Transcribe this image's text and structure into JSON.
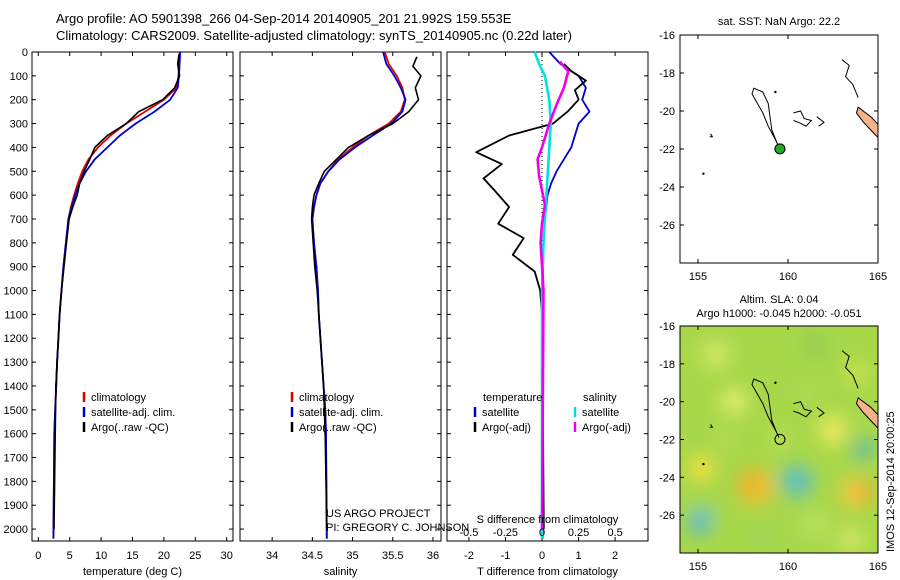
{
  "header": {
    "line1": "Argo profile: AO 5901398_266 04-Sep-2014 20140905_201 21.992S 159.553E",
    "line2": "Climatology: CARS2009. Satellite-adjusted climatology: synTS_20140905.nc (0.22d later)"
  },
  "side_stamp": "IMOS 12-Sep-2014 20:00:25",
  "credit": {
    "line1": "US ARGO PROJECT",
    "line2": "PI: GREGORY C. JOHNSON"
  },
  "colors": {
    "climatology": "#dd0000",
    "satellite": "#0000cc",
    "argo": "#000000",
    "sal_satellite": "#00e0e0",
    "sal_argo": "#ee00ee",
    "land": "#f4b488"
  },
  "chart_data": [
    {
      "type": "line",
      "id": "temperature",
      "xlabel": "temperature (deg C)",
      "ylabel": "",
      "xlim": [
        -1,
        31
      ],
      "ylim": [
        2050,
        0
      ],
      "xticks": [
        0,
        5,
        10,
        15,
        20,
        25,
        30
      ],
      "yticks": [
        0,
        100,
        200,
        300,
        400,
        500,
        600,
        700,
        800,
        900,
        1000,
        1100,
        1200,
        1300,
        1400,
        1500,
        1600,
        1700,
        1800,
        1900,
        2000
      ],
      "legend": [
        "climatology",
        "satellite-adj. clim.",
        "Argo(..raw -QC)"
      ],
      "series": [
        {
          "name": "climatology",
          "color": "#dd0000",
          "x": [
            22.5,
            22.4,
            22.3,
            22.0,
            20.0,
            17.0,
            14.0,
            11.5,
            9.5,
            8.0,
            7.0,
            6.3,
            5.7,
            5.2,
            4.8,
            4.4,
            4.0,
            3.7,
            3.4,
            3.2,
            3.0,
            2.85,
            2.7,
            2.55,
            2.4
          ],
          "y": [
            0,
            50,
            100,
            150,
            200,
            250,
            300,
            350,
            400,
            450,
            500,
            550,
            600,
            650,
            700,
            800,
            900,
            1000,
            1100,
            1200,
            1300,
            1400,
            1500,
            1600,
            2040
          ]
        },
        {
          "name": "satellite-adj. clim.",
          "color": "#0000cc",
          "x": [
            22.6,
            22.5,
            22.4,
            22.2,
            21.0,
            18.5,
            15.5,
            13.0,
            11.0,
            9.0,
            7.6,
            6.6,
            5.9,
            5.3,
            4.8,
            4.4,
            4.0,
            3.7,
            3.4,
            3.2,
            3.0,
            2.85,
            2.7,
            2.55,
            2.4
          ],
          "y": [
            0,
            50,
            100,
            150,
            200,
            250,
            300,
            350,
            400,
            450,
            500,
            550,
            600,
            650,
            700,
            800,
            900,
            1000,
            1100,
            1200,
            1300,
            1400,
            1500,
            1600,
            2040
          ]
        },
        {
          "name": "Argo(..raw -QC)",
          "color": "#000000",
          "x": [
            22.4,
            22.2,
            22.5,
            21.7,
            19.8,
            16.0,
            14.0,
            11.0,
            9.0,
            8.2,
            7.3,
            6.6,
            6.2,
            5.5,
            4.9,
            4.5,
            4.1,
            3.7,
            3.4,
            3.2,
            3.0,
            2.8,
            2.7,
            2.5
          ],
          "y": [
            10,
            50,
            100,
            150,
            200,
            250,
            300,
            350,
            400,
            450,
            500,
            550,
            600,
            650,
            700,
            800,
            900,
            1000,
            1100,
            1200,
            1300,
            1400,
            1600,
            2000
          ]
        }
      ]
    },
    {
      "type": "line",
      "id": "salinity",
      "xlabel": "salinity",
      "xlim": [
        33.6,
        36.1
      ],
      "ylim": [
        2050,
        0
      ],
      "xticks": [
        34,
        34.5,
        35,
        35.5,
        36
      ],
      "legend": [
        "climatology",
        "satellite-adj. clim.",
        "Argo(..raw -QC)"
      ],
      "series": [
        {
          "name": "climatology",
          "color": "#dd0000",
          "x": [
            35.4,
            35.45,
            35.55,
            35.62,
            35.65,
            35.6,
            35.45,
            35.2,
            35.0,
            34.82,
            34.7,
            34.6,
            34.55,
            34.52,
            34.5,
            34.52,
            34.55,
            34.57,
            34.58,
            34.6,
            34.62,
            34.64,
            34.66,
            34.67,
            34.68
          ],
          "y": [
            0,
            50,
            100,
            150,
            200,
            250,
            300,
            350,
            400,
            450,
            500,
            550,
            600,
            650,
            700,
            800,
            900,
            1000,
            1100,
            1200,
            1300,
            1400,
            1500,
            1600,
            2040
          ]
        },
        {
          "name": "satellite-adj. clim.",
          "color": "#0000cc",
          "x": [
            35.38,
            35.42,
            35.52,
            35.6,
            35.66,
            35.62,
            35.48,
            35.25,
            35.03,
            34.84,
            34.7,
            34.6,
            34.55,
            34.52,
            34.5,
            34.52,
            34.55,
            34.57,
            34.58,
            34.6,
            34.62,
            34.64,
            34.66,
            34.67,
            34.68
          ],
          "y": [
            0,
            50,
            100,
            150,
            200,
            250,
            300,
            350,
            400,
            450,
            500,
            550,
            600,
            650,
            700,
            800,
            900,
            1000,
            1100,
            1200,
            1300,
            1400,
            1500,
            1600,
            2040
          ]
        },
        {
          "name": "Argo(..raw -QC)",
          "color": "#000000",
          "x": [
            35.8,
            35.75,
            35.85,
            35.78,
            35.82,
            35.7,
            35.5,
            35.2,
            34.95,
            34.8,
            34.65,
            34.58,
            34.52,
            34.5,
            34.49,
            34.51,
            34.53,
            34.56,
            34.58,
            34.6,
            34.62,
            34.64,
            34.66,
            34.68
          ],
          "y": [
            20,
            60,
            100,
            150,
            200,
            250,
            300,
            350,
            400,
            450,
            500,
            550,
            600,
            650,
            700,
            800,
            900,
            1000,
            1100,
            1200,
            1300,
            1400,
            1600,
            2000
          ]
        }
      ]
    },
    {
      "type": "line",
      "id": "differences",
      "xlabel": "T difference from climatology",
      "xlabel2": "S difference from climatology",
      "xlim": [
        -2.6,
        2.9
      ],
      "ylim": [
        2050,
        0
      ],
      "xticks": [
        -2,
        -1,
        0,
        1,
        2
      ],
      "x2lim": [
        -0.65,
        0.725
      ],
      "x2ticks": [
        -0.5,
        -0.25,
        0,
        0.25,
        0.5
      ],
      "x2ticklabels": [
        "-0.5",
        "-0.25",
        "0",
        "0.25",
        "0.5"
      ],
      "legend_groups": {
        "temperature": "temperature",
        "salinity": "salinity"
      },
      "legend": [
        "satellite",
        "Argo(-adj)",
        "satellite",
        "Argo(-adj)"
      ],
      "series": [
        {
          "name": "temperature satellite",
          "color": "#0000cc",
          "axis": "T",
          "x": [
            0.2,
            0.5,
            1.0,
            1.2,
            1.1,
            1.3,
            1.0,
            0.9,
            0.8,
            0.6,
            0.4,
            0.25,
            0.15,
            0.08,
            0.04,
            0.02,
            0.02,
            0.02
          ],
          "y": [
            0,
            50,
            100,
            150,
            200,
            250,
            300,
            350,
            400,
            450,
            500,
            550,
            600,
            700,
            800,
            1000,
            1400,
            2040
          ]
        },
        {
          "name": "temperature Argo(-adj)",
          "color": "#000000",
          "axis": "T",
          "x": [
            0.6,
            0.8,
            1.2,
            0.9,
            1.0,
            0.7,
            0.3,
            -0.9,
            -1.8,
            -1.1,
            -1.6,
            -1.3,
            -0.9,
            -1.2,
            -0.5,
            -0.8,
            -0.2,
            -0.05,
            0.0,
            0.02,
            0.05
          ],
          "y": [
            50,
            80,
            120,
            160,
            200,
            250,
            300,
            350,
            420,
            470,
            530,
            580,
            650,
            720,
            780,
            850,
            920,
            1000,
            1100,
            1400,
            2000
          ]
        },
        {
          "name": "salinity satellite",
          "color": "#00e0e0",
          "axis": "S",
          "x": [
            -0.05,
            -0.02,
            0.02,
            0.05,
            0.06,
            0.05,
            0.04,
            0.03,
            0.02,
            0.01,
            0.0,
            0.0
          ],
          "y": [
            0,
            50,
            100,
            200,
            300,
            400,
            500,
            600,
            700,
            800,
            1000,
            2040
          ]
        },
        {
          "name": "salinity Argo(-adj)",
          "color": "#ee00ee",
          "axis": "S",
          "x": [
            0.12,
            0.18,
            0.15,
            0.1,
            0.05,
            0.0,
            -0.03,
            -0.02,
            0.0,
            0.02,
            0.0,
            -0.01,
            0.01,
            0.0
          ],
          "y": [
            40,
            80,
            150,
            220,
            300,
            400,
            450,
            520,
            580,
            640,
            720,
            800,
            1000,
            2000
          ]
        }
      ]
    },
    {
      "type": "map",
      "id": "sst_map",
      "title": "sat. SST: NaN Argo: 22.2",
      "xlim": [
        154,
        165
      ],
      "ylim": [
        -28,
        -16
      ],
      "xticks": [
        155,
        160,
        165
      ],
      "yticks": [
        -16,
        -18,
        -20,
        -22,
        -24,
        -26
      ],
      "float_position": {
        "lon": 159.553,
        "lat": -21.992
      }
    },
    {
      "type": "heatmap",
      "id": "sla_map",
      "title": "Altim. SLA: 0.04",
      "subtitle": "Argo h1000: -0.045 h2000: -0.051",
      "xlim": [
        154,
        165
      ],
      "ylim": [
        -28,
        -16
      ],
      "xticks": [
        155,
        160,
        165
      ],
      "yticks": [
        -16,
        -18,
        -20,
        -22,
        -24,
        -26
      ],
      "float_position": {
        "lon": 159.553,
        "lat": -21.992
      }
    }
  ]
}
